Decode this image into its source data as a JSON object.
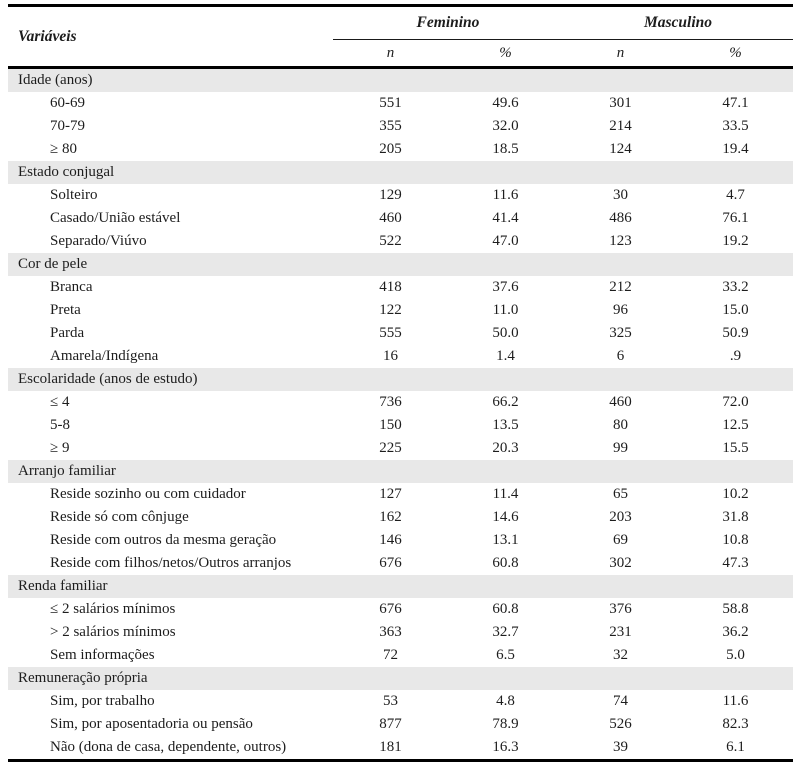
{
  "table": {
    "header": {
      "variables_label": "Variáveis",
      "groups": [
        {
          "label": "Feminino"
        },
        {
          "label": "Masculino"
        }
      ],
      "sub_columns": [
        "n",
        "%",
        "n",
        "%"
      ]
    },
    "sections": [
      {
        "title": "Idade (anos)",
        "rows": [
          {
            "label": "60-69",
            "values": [
              "551",
              "49.6",
              "301",
              "47.1"
            ]
          },
          {
            "label": "70-79",
            "values": [
              "355",
              "32.0",
              "214",
              "33.5"
            ]
          },
          {
            "label": "≥ 80",
            "values": [
              "205",
              "18.5",
              "124",
              "19.4"
            ]
          }
        ]
      },
      {
        "title": "Estado conjugal",
        "rows": [
          {
            "label": "Solteiro",
            "values": [
              "129",
              "11.6",
              "30",
              "4.7"
            ]
          },
          {
            "label": "Casado/União estável",
            "values": [
              "460",
              "41.4",
              "486",
              "76.1"
            ]
          },
          {
            "label": "Separado/Viúvo",
            "values": [
              "522",
              "47.0",
              "123",
              "19.2"
            ]
          }
        ]
      },
      {
        "title": "Cor de pele",
        "rows": [
          {
            "label": "Branca",
            "values": [
              "418",
              "37.6",
              "212",
              "33.2"
            ]
          },
          {
            "label": "Preta",
            "values": [
              "122",
              "11.0",
              "96",
              "15.0"
            ]
          },
          {
            "label": "Parda",
            "values": [
              "555",
              "50.0",
              "325",
              "50.9"
            ]
          },
          {
            "label": "Amarela/Indígena",
            "values": [
              "16",
              "1.4",
              "6",
              ".9"
            ]
          }
        ]
      },
      {
        "title": "Escolaridade (anos de estudo)",
        "rows": [
          {
            "label": "≤ 4",
            "values": [
              "736",
              "66.2",
              "460",
              "72.0"
            ]
          },
          {
            "label": "5-8",
            "values": [
              "150",
              "13.5",
              "80",
              "12.5"
            ]
          },
          {
            "label": "≥ 9",
            "values": [
              "225",
              "20.3",
              "99",
              "15.5"
            ]
          }
        ]
      },
      {
        "title": "Arranjo familiar",
        "rows": [
          {
            "label": "Reside sozinho ou com cuidador",
            "values": [
              "127",
              "11.4",
              "65",
              "10.2"
            ]
          },
          {
            "label": "Reside só com cônjuge",
            "values": [
              "162",
              "14.6",
              "203",
              "31.8"
            ]
          },
          {
            "label": "Reside com outros da mesma geração",
            "values": [
              "146",
              "13.1",
              "69",
              "10.8"
            ]
          },
          {
            "label": "Reside com filhos/netos/Outros arranjos",
            "values": [
              "676",
              "60.8",
              "302",
              "47.3"
            ]
          }
        ]
      },
      {
        "title": "Renda familiar",
        "rows": [
          {
            "label": "≤ 2 salários mínimos",
            "values": [
              "676",
              "60.8",
              "376",
              "58.8"
            ]
          },
          {
            "label": "> 2 salários mínimos",
            "values": [
              "363",
              "32.7",
              "231",
              "36.2"
            ]
          },
          {
            "label": "Sem informações",
            "values": [
              "72",
              "6.5",
              "32",
              "5.0"
            ]
          }
        ]
      },
      {
        "title": "Remuneração própria",
        "rows": [
          {
            "label": "Sim, por trabalho",
            "values": [
              "53",
              "4.8",
              "74",
              "11.6"
            ]
          },
          {
            "label": "Sim, por aposentadoria ou pensão",
            "values": [
              "877",
              "78.9",
              "526",
              "82.3"
            ]
          },
          {
            "label": "Não (dona de casa, dependente, outros)",
            "values": [
              "181",
              "16.3",
              "39",
              "6.1"
            ]
          }
        ]
      }
    ],
    "colors": {
      "section_bg": "#e8e8e8",
      "rule": "#000000",
      "text": "#1d1d1d"
    }
  }
}
